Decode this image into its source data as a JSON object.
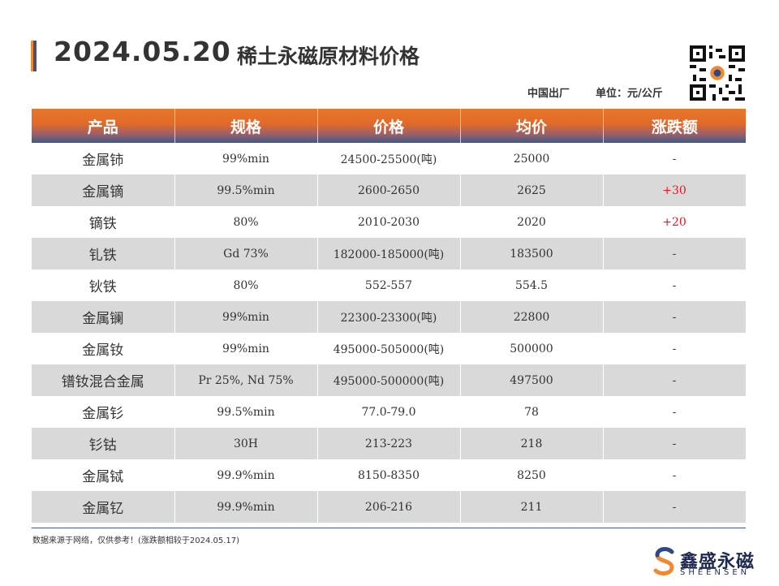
{
  "header": {
    "date": "2024.05.20",
    "title": "稀土永磁原材料价格",
    "origin": "中国出厂",
    "unit": "单位：元/公斤"
  },
  "table": {
    "columns": [
      "产品",
      "规格",
      "价格",
      "均价",
      "涨跌额"
    ],
    "rows": [
      {
        "product": "金属铈",
        "spec": "99%min",
        "price": "24500-25500(吨)",
        "avg": "25000",
        "change": "-",
        "change_dir": "flat"
      },
      {
        "product": "金属镝",
        "spec": "99.5%min",
        "price": "2600-2650",
        "avg": "2625",
        "change": "+30",
        "change_dir": "up"
      },
      {
        "product": "镝铁",
        "spec": "80%",
        "price": "2010-2030",
        "avg": "2020",
        "change": "+20",
        "change_dir": "up"
      },
      {
        "product": "钆铁",
        "spec": "Gd 73%",
        "price": "182000-185000(吨)",
        "avg": "183500",
        "change": "-",
        "change_dir": "flat"
      },
      {
        "product": "钬铁",
        "spec": "80%",
        "price": "552-557",
        "avg": "554.5",
        "change": "-",
        "change_dir": "flat"
      },
      {
        "product": "金属镧",
        "spec": "99%min",
        "price": "22300-23300(吨)",
        "avg": "22800",
        "change": "-",
        "change_dir": "flat"
      },
      {
        "product": "金属钕",
        "spec": "99%min",
        "price": "495000-505000(吨)",
        "avg": "500000",
        "change": "-",
        "change_dir": "flat"
      },
      {
        "product": "镨钕混合金属",
        "spec": "Pr 25%, Nd 75%",
        "price": "495000-500000(吨)",
        "avg": "497500",
        "change": "-",
        "change_dir": "flat"
      },
      {
        "product": "金属钐",
        "spec": "99.5%min",
        "price": "77.0-79.0",
        "avg": "78",
        "change": "-",
        "change_dir": "flat"
      },
      {
        "product": "钐钴",
        "spec": "30H",
        "price": "213-223",
        "avg": "218",
        "change": "-",
        "change_dir": "flat"
      },
      {
        "product": "金属铽",
        "spec": "99.9%min",
        "price": "8150-8350",
        "avg": "8250",
        "change": "-",
        "change_dir": "flat"
      },
      {
        "product": "金属钇",
        "spec": "99.9%min",
        "price": "206-216",
        "avg": "211",
        "change": "-",
        "change_dir": "flat"
      }
    ]
  },
  "footnote": "数据来源于网络，仅供参考！(涨跌额相较于2024.05.17)",
  "brand": {
    "name": "鑫盛永磁",
    "english": "SHEENSEN",
    "logo_icon": "s-swirl-logo",
    "qr_icon": "qr-code"
  },
  "colors": {
    "accent_orange": "#e8772a",
    "accent_navy": "#3d5a88",
    "up_red": "#e0191d",
    "stripe_gray": "#d9d9d9"
  }
}
